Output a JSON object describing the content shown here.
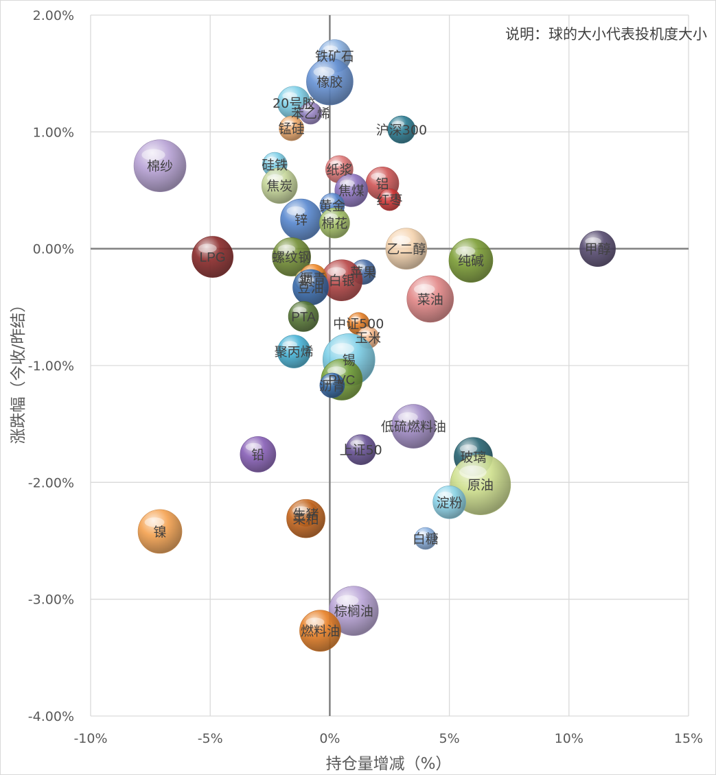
{
  "chart_data": {
    "type": "bubble",
    "xlabel": "持仓量增减（%）",
    "ylabel": "涨跌幅（今收/昨结）",
    "note": "说明：球的大小代表投机度大小",
    "xlim": [
      -10,
      15
    ],
    "ylim": [
      -4,
      2
    ],
    "x_ticks": [
      "-10%",
      "-5%",
      "0%",
      "5%",
      "10%",
      "15%"
    ],
    "y_ticks": [
      "-4.00%",
      "-3.00%",
      "-2.00%",
      "-1.00%",
      "0.00%",
      "1.00%",
      "2.00%"
    ],
    "x_tick_values": [
      -10,
      -5,
      0,
      5,
      10,
      15
    ],
    "y_tick_values": [
      -4,
      -3,
      -2,
      -1,
      0,
      1,
      2
    ],
    "grid": true,
    "points": [
      {
        "name": "铁矿石",
        "x": 0.2,
        "y": 1.65,
        "size": 24,
        "color": "#8db3e2"
      },
      {
        "name": "橡胶",
        "x": 0.0,
        "y": 1.43,
        "size": 34,
        "color": "#6a95d6"
      },
      {
        "name": "20号胶",
        "x": -1.5,
        "y": 1.25,
        "size": 24,
        "color": "#7fd0e8"
      },
      {
        "name": "苯乙烯",
        "x": -0.8,
        "y": 1.16,
        "size": 16,
        "color": "#9a87c4"
      },
      {
        "name": "锰硅",
        "x": -1.6,
        "y": 1.03,
        "size": 18,
        "color": "#f2ad6e"
      },
      {
        "name": "沪深300",
        "x": 3.0,
        "y": 1.02,
        "size": 20,
        "color": "#2f7e94"
      },
      {
        "name": "棉纱",
        "x": -7.1,
        "y": 0.71,
        "size": 38,
        "color": "#b9a4d6"
      },
      {
        "name": "硅铁",
        "x": -2.3,
        "y": 0.72,
        "size": 18,
        "color": "#7fd0e8"
      },
      {
        "name": "纸浆",
        "x": 0.4,
        "y": 0.68,
        "size": 20,
        "color": "#e07a7a"
      },
      {
        "name": "铝",
        "x": 2.2,
        "y": 0.56,
        "size": 24,
        "color": "#d15a5a"
      },
      {
        "name": "焦炭",
        "x": -2.1,
        "y": 0.54,
        "size": 26,
        "color": "#c6d69a"
      },
      {
        "name": "焦煤",
        "x": 0.9,
        "y": 0.5,
        "size": 24,
        "color": "#8e75c0"
      },
      {
        "name": "红枣",
        "x": 2.5,
        "y": 0.42,
        "size": 16,
        "color": "#d33b3b"
      },
      {
        "name": "黄金",
        "x": 0.1,
        "y": 0.37,
        "size": 18,
        "color": "#5b8ad0"
      },
      {
        "name": "锌",
        "x": -1.2,
        "y": 0.25,
        "size": 30,
        "color": "#5b8ad0"
      },
      {
        "name": "棉花",
        "x": 0.2,
        "y": 0.22,
        "size": 22,
        "color": "#a8c46a"
      },
      {
        "name": "乙二醇",
        "x": 3.2,
        "y": 0.0,
        "size": 30,
        "color": "#f5d4b0"
      },
      {
        "name": "甲醇",
        "x": 11.2,
        "y": 0.0,
        "size": 26,
        "color": "#5a4f73"
      },
      {
        "name": "LPG",
        "x": -4.9,
        "y": -0.07,
        "size": 30,
        "color": "#8c2e2e"
      },
      {
        "name": "纯碱",
        "x": 5.9,
        "y": -0.1,
        "size": 32,
        "color": "#7fa03a"
      },
      {
        "name": "螺纹钢",
        "x": -1.6,
        "y": -0.07,
        "size": 28,
        "color": "#76913a"
      },
      {
        "name": "苹果",
        "x": 1.4,
        "y": -0.2,
        "size": 18,
        "color": "#4a6ea8"
      },
      {
        "name": "白银",
        "x": 0.5,
        "y": -0.27,
        "size": 30,
        "color": "#b94a4a"
      },
      {
        "name": "铜",
        "x": -1.0,
        "y": -0.27,
        "size": 16,
        "color": "#d2c27a"
      },
      {
        "name": "沥青",
        "x": -0.7,
        "y": -0.25,
        "size": 20,
        "color": "#f08a2c"
      },
      {
        "name": "豆油",
        "x": -0.8,
        "y": -0.33,
        "size": 26,
        "color": "#3d6fb0"
      },
      {
        "name": "菜油",
        "x": 4.2,
        "y": -0.43,
        "size": 34,
        "color": "#e38a8a"
      },
      {
        "name": "PTA",
        "x": -1.1,
        "y": -0.58,
        "size": 22,
        "color": "#5a7a3a"
      },
      {
        "name": "中证500",
        "x": 1.2,
        "y": -0.64,
        "size": 16,
        "color": "#e8822a"
      },
      {
        "name": "玉米",
        "x": 1.6,
        "y": -0.76,
        "size": 16,
        "color": "#f7b98a"
      },
      {
        "name": "聚丙烯",
        "x": -1.5,
        "y": -0.88,
        "size": 24,
        "color": "#4bb5d8"
      },
      {
        "name": "锡",
        "x": 0.8,
        "y": -0.95,
        "size": 38,
        "color": "#7fd0e8"
      },
      {
        "name": "PVC",
        "x": 0.5,
        "y": -1.12,
        "size": 30,
        "color": "#7aa33c"
      },
      {
        "name": "沥青",
        "x": 0.1,
        "y": -1.17,
        "size": 18,
        "color": "#3d6fb0"
      },
      {
        "name": "低硫燃料油",
        "x": 3.5,
        "y": -1.52,
        "size": 32,
        "color": "#a48fc8"
      },
      {
        "name": "上证50",
        "x": 1.3,
        "y": -1.72,
        "size": 22,
        "color": "#6a5596"
      },
      {
        "name": "铅",
        "x": -3.0,
        "y": -1.76,
        "size": 26,
        "color": "#8a63b8"
      },
      {
        "name": "玻璃",
        "x": 6.0,
        "y": -1.78,
        "size": 28,
        "color": "#2d6876"
      },
      {
        "name": "原油",
        "x": 6.3,
        "y": -2.02,
        "size": 44,
        "color": "#cfe08f"
      },
      {
        "name": "淀粉",
        "x": 5.0,
        "y": -2.17,
        "size": 24,
        "color": "#8fd6ec"
      },
      {
        "name": "生猪",
        "x": -1.0,
        "y": -2.27,
        "size": 18,
        "color": "#5a3a1e"
      },
      {
        "name": "菜粕",
        "x": -1.0,
        "y": -2.31,
        "size": 28,
        "color": "#c96a22"
      },
      {
        "name": "镍",
        "x": -7.1,
        "y": -2.42,
        "size": 32,
        "color": "#f5a454"
      },
      {
        "name": "白糖",
        "x": 4.0,
        "y": -2.48,
        "size": 16,
        "color": "#8db3e2"
      },
      {
        "name": "棕榈油",
        "x": 1.0,
        "y": -3.1,
        "size": 36,
        "color": "#b9a4d6"
      },
      {
        "name": "燃料油",
        "x": -0.4,
        "y": -3.27,
        "size": 30,
        "color": "#e8822a"
      }
    ]
  }
}
